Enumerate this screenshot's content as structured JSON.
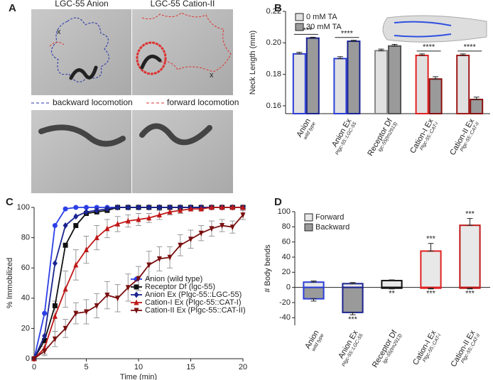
{
  "panel_labels": [
    "A",
    "B",
    "C",
    "D"
  ],
  "panel_a": {
    "titles": [
      "LGC-55 Anion",
      "LGC-55 Cation-II"
    ],
    "marks": [
      "x",
      "x"
    ],
    "captions": [
      "backward locomotion",
      "forward locomotion"
    ]
  },
  "chart_data": [
    {
      "type": "bar",
      "bar_mode": "grouped",
      "ylabel": "Neck Length (mm)",
      "categories": [
        "Anion",
        "Anion Ex",
        "Receptor Df",
        "Cation-I Ex",
        "Cation-II Ex"
      ],
      "category_notes": [
        "wild type",
        "Plgc-55::LGC-55",
        "lgc-55(tm2913)",
        "Plgc-55::CAT-I",
        "Plgc-55::CAT-II"
      ],
      "edge_colors": [
        "#2b3fd6",
        "#2b3fd6",
        "#888888",
        "#e02020",
        "#a01818"
      ],
      "series": [
        {
          "name": "0 mM TA",
          "color": "#e0e0e0",
          "values": [
            0.193,
            0.19,
            0.195,
            0.192,
            0.192
          ],
          "errors": [
            0.001,
            0.0012,
            0.001,
            0.001,
            0.001
          ]
        },
        {
          "name": "30 mM TA",
          "color": "#9a9a9a",
          "values": [
            0.203,
            0.201,
            0.198,
            0.177,
            0.164
          ],
          "errors": [
            0.0006,
            0.0006,
            0.001,
            0.0015,
            0.0015
          ]
        }
      ],
      "significance": [
        "****",
        "****",
        null,
        "****",
        "****"
      ],
      "ylim": [
        0.155,
        0.22
      ],
      "yticks": [
        0.16,
        0.18,
        {
          "value": 0.2,
          "label": "0.20"
        },
        0.22
      ],
      "legend": "upper left"
    },
    {
      "type": "line",
      "xlabel": "Time (min)",
      "ylabel": "% Immobilized",
      "x": [
        0,
        1,
        2,
        3,
        4,
        5,
        6,
        7,
        8,
        9,
        10,
        11,
        12,
        13,
        14,
        15,
        16,
        17,
        18,
        19,
        20
      ],
      "series": [
        {
          "name": "Anion (wild type)",
          "color": "#2b3fe6",
          "marker": "circle",
          "values": [
            0,
            30,
            88,
            99,
            100,
            100,
            100,
            100,
            100,
            100,
            100,
            100,
            100,
            100,
            100,
            100,
            100,
            100,
            100,
            100,
            100
          ]
        },
        {
          "name": "Receptor Df (lgc-55)",
          "color": "#111111",
          "marker": "square",
          "values": [
            0,
            12,
            35,
            75,
            88,
            96,
            97,
            98,
            100,
            100,
            100,
            100,
            100,
            100,
            100,
            100,
            100,
            100,
            100,
            100,
            100
          ]
        },
        {
          "name": "Anion Ex (Plgc-55::LGC-55)",
          "color": "#1a2490",
          "marker": "diamond",
          "values": [
            0,
            15,
            63,
            88,
            94,
            97,
            98,
            99,
            100,
            100,
            100,
            100,
            100,
            100,
            100,
            100,
            100,
            100,
            100,
            100,
            100
          ]
        },
        {
          "name": "Cation-I Ex (Plgc-55::CAT-I)",
          "color": "#c01818",
          "marker": "triangle-up",
          "values": [
            0,
            7,
            28,
            46,
            62,
            72,
            80,
            86,
            89,
            91,
            92,
            93,
            95,
            97,
            98,
            99,
            99,
            100,
            100,
            100,
            100
          ],
          "errors": [
            0,
            4,
            10,
            12,
            10,
            9,
            8,
            6,
            5,
            4,
            4,
            3,
            3,
            2,
            2,
            1,
            1,
            1,
            1,
            1,
            1
          ]
        },
        {
          "name": "Cation-II Ex (Plgc-55::CAT-II)",
          "color": "#7a1010",
          "marker": "triangle-down",
          "values": [
            0,
            5,
            13,
            20,
            30,
            31,
            35,
            42,
            40,
            47,
            53,
            62,
            66,
            67,
            75,
            79,
            83,
            86,
            88,
            87,
            95
          ],
          "errors": [
            0,
            3,
            5,
            6,
            7,
            8,
            8,
            9,
            9,
            9,
            8,
            9,
            8,
            7,
            7,
            6,
            5,
            5,
            4,
            4,
            3
          ]
        }
      ],
      "xlim": [
        0,
        20
      ],
      "xticks": [
        0,
        5,
        10,
        15,
        20
      ],
      "ylim": [
        0,
        100
      ],
      "yticks": [
        0,
        20,
        40,
        60,
        80,
        100
      ],
      "legend": "lower right"
    },
    {
      "type": "bar",
      "bar_mode": "overlaid",
      "ylabel": "# Body bends",
      "categories": [
        "Anion",
        "Anion Ex",
        "Receptor Df",
        "Cation-I Ex",
        "Cation-II Ex"
      ],
      "category_notes": [
        "wild type",
        "Plgc-55::LGC-55",
        "lgc-55(tm2913)",
        "Plgc-55::CAT-I",
        "Plgc-55::CAT-II"
      ],
      "edge_colors": [
        "#2b3fd6",
        "#1a2490",
        "#111111",
        "#e02020",
        "#c01818"
      ],
      "series": [
        {
          "name": "Forward",
          "color": "#e8e8e8",
          "values": [
            7,
            5,
            9,
            48,
            82
          ],
          "errors": [
            1.5,
            1.5,
            1,
            10,
            9
          ],
          "significance": [
            null,
            null,
            null,
            "***",
            "***"
          ]
        },
        {
          "name": "Backward",
          "color": "#9a9a9a",
          "values": [
            -15,
            -33,
            -1,
            -1,
            -1
          ],
          "errors": [
            3,
            3,
            1,
            1,
            1
          ],
          "significance": [
            null,
            "***",
            "**",
            "***",
            "***"
          ]
        }
      ],
      "ylim": [
        -50,
        100
      ],
      "yticks": [
        -40,
        -20,
        0,
        20,
        40,
        60,
        80,
        100
      ],
      "legend": "upper left"
    }
  ]
}
